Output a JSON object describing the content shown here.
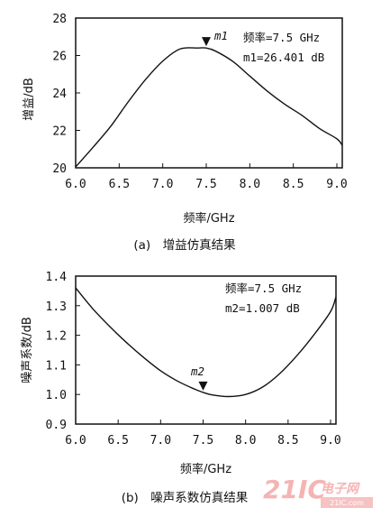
{
  "chart_data": [
    {
      "type": "line",
      "caption": "(a)　增益仿真结果",
      "xlabel": "频率/GHz",
      "ylabel": "增益/dB",
      "xlim": [
        6.0,
        9.0
      ],
      "ylim": [
        20,
        28
      ],
      "x_ticks": [
        "6.0",
        "6.5",
        "7.0",
        "7.5",
        "8.0",
        "8.5",
        "9.0"
      ],
      "y_ticks": [
        "20",
        "22",
        "24",
        "26",
        "28"
      ],
      "series": [
        {
          "x": [
            6.0,
            6.2,
            6.4,
            6.6,
            6.8,
            7.0,
            7.2,
            7.4,
            7.5,
            7.6,
            7.8,
            8.0,
            8.2,
            8.4,
            8.6,
            8.8,
            9.0,
            9.13
          ],
          "y": [
            20.05,
            21.1,
            22.2,
            23.5,
            24.7,
            25.7,
            26.35,
            26.4,
            26.4,
            26.25,
            25.7,
            24.9,
            24.1,
            23.4,
            22.8,
            22.1,
            21.55,
            21.2
          ]
        }
      ],
      "marker": {
        "x": 7.5,
        "y": 26.401,
        "label": "m1"
      },
      "annotation": [
        "频率=7.5 GHz",
        "m1=26.401 dB"
      ]
    },
    {
      "type": "line",
      "caption": "(b)　噪声系数仿真结果",
      "xlabel": "频率/GHz",
      "ylabel": "噪声系数/dB",
      "xlim": [
        6.0,
        9.0
      ],
      "ylim": [
        0.9,
        1.4
      ],
      "x_ticks": [
        "6.0",
        "6.5",
        "7.0",
        "7.5",
        "8.0",
        "8.5",
        "9.0"
      ],
      "y_ticks": [
        "0.9",
        "1.0",
        "1.1",
        "1.2",
        "1.3",
        "1.4"
      ],
      "series": [
        {
          "x": [
            6.0,
            6.2,
            6.4,
            6.6,
            6.8,
            7.0,
            7.2,
            7.4,
            7.5,
            7.6,
            7.8,
            8.0,
            8.2,
            8.4,
            8.6,
            8.8,
            9.0,
            9.13
          ],
          "y": [
            1.36,
            1.29,
            1.23,
            1.175,
            1.125,
            1.08,
            1.045,
            1.018,
            1.007,
            0.999,
            0.993,
            1.0,
            1.025,
            1.07,
            1.13,
            1.2,
            1.28,
            1.33
          ]
        }
      ],
      "marker": {
        "x": 7.5,
        "y": 1.007,
        "label": "m2"
      },
      "annotation": [
        "频率=7.5 GHz",
        "m2=1.007 dB"
      ]
    }
  ],
  "watermark": {
    "brand": "21IC",
    "brand_cn": "电子网",
    "url": "21IC.com"
  }
}
